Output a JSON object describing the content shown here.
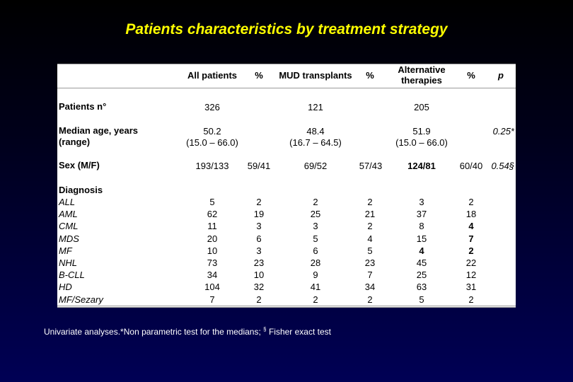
{
  "title": "Patients characteristics by treatment strategy",
  "table": {
    "headers": [
      "All patients",
      "%",
      "MUD transplants",
      "%",
      "Alternative therapies",
      "%",
      "p"
    ],
    "patients_n": {
      "label": "Patients n°",
      "all": "326",
      "mud": "121",
      "alt": "205"
    },
    "median_age": {
      "label1": "Median age, years",
      "label2": "(range)",
      "all": "50.2",
      "all_range": "(15.0 – 66.0)",
      "mud": "48.4",
      "mud_range": "(16.7 – 64.5)",
      "alt": "51.9",
      "alt_range": "(15.0 – 66.0)",
      "p": "0.25*"
    },
    "sex": {
      "label": "Sex (M/F)",
      "all": "193/133",
      "all_pct": "59/41",
      "mud": "69/52",
      "mud_pct": "57/43",
      "alt": "124/81",
      "alt_pct": "60/40",
      "p": "0.54§"
    },
    "diagnosis_label": "Diagnosis",
    "diagnosis": [
      {
        "name": "ALL",
        "all": "5",
        "all_pct": "2",
        "mud": "2",
        "mud_pct": "2",
        "alt": "3",
        "alt_pct": "2"
      },
      {
        "name": "AML",
        "all": "62",
        "all_pct": "19",
        "mud": "25",
        "mud_pct": "21",
        "alt": "37",
        "alt_pct": "18"
      },
      {
        "name": "CML",
        "all": "11",
        "all_pct": "3",
        "mud": "3",
        "mud_pct": "2",
        "alt": "8",
        "alt_pct": "4"
      },
      {
        "name": "MDS",
        "all": "20",
        "all_pct": "6",
        "mud": "5",
        "mud_pct": "4",
        "alt": "15",
        "alt_pct": "7"
      },
      {
        "name": "MF",
        "all": "10",
        "all_pct": "3",
        "mud": "6",
        "mud_pct": "5",
        "alt": "4",
        "alt_pct": "2"
      },
      {
        "name": "NHL",
        "all": "73",
        "all_pct": "23",
        "mud": "28",
        "mud_pct": "23",
        "alt": "45",
        "alt_pct": "22"
      },
      {
        "name": "B-CLL",
        "all": "34",
        "all_pct": "10",
        "mud": "9",
        "mud_pct": "7",
        "alt": "25",
        "alt_pct": "12"
      },
      {
        "name": "HD",
        "all": "104",
        "all_pct": "32",
        "mud": "41",
        "mud_pct": "34",
        "alt": "63",
        "alt_pct": "31"
      },
      {
        "name": "MF/Sezary",
        "all": "7",
        "all_pct": "2",
        "mud": "2",
        "mud_pct": "2",
        "alt": "5",
        "alt_pct": "2"
      }
    ]
  },
  "footnote": {
    "prefix": "Univariate analyses.*Non parametric test for the medians; ",
    "symbol": "§",
    "suffix": " Fisher exact test"
  }
}
